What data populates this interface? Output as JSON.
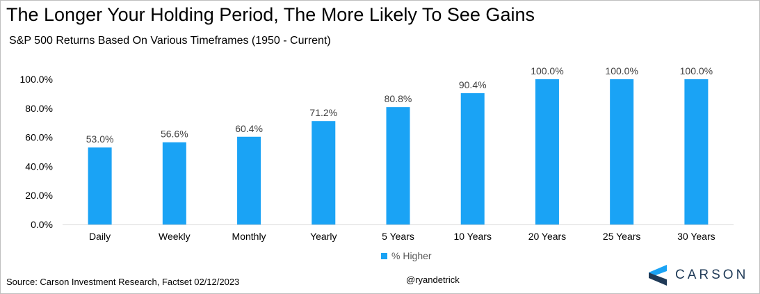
{
  "title": "The Longer Your Holding Period, The More Likely To See Gains",
  "subtitle": "S&P 500 Returns Based On Various Timeframes (1950 - Current)",
  "source": "Source: Carson Investment Research, Factset 02/12/2023",
  "handle": "@ryandetrick",
  "logo": {
    "text": "CARSON",
    "icon": "carson-chevron-icon"
  },
  "colors": {
    "bar": "#1aa3f5",
    "axis_text": "#000000",
    "label_text": "#404040",
    "logo_text": "#1f3a57"
  },
  "chart_data": {
    "type": "bar",
    "title": "The Longer Your Holding Period, The More Likely To See Gains",
    "subtitle": "S&P 500 Returns Based On Various Timeframes (1950 - Current)",
    "categories": [
      "Daily",
      "Weekly",
      "Monthly",
      "Yearly",
      "5 Years",
      "10 Years",
      "20 Years",
      "25 Years",
      "30 Years"
    ],
    "series": [
      {
        "name": "% Higher",
        "values": [
          53.0,
          56.6,
          60.4,
          71.2,
          80.8,
          90.4,
          100.0,
          100.0,
          100.0
        ]
      }
    ],
    "value_labels": [
      "53.0%",
      "56.6%",
      "60.4%",
      "71.2%",
      "80.8%",
      "90.4%",
      "100.0%",
      "100.0%",
      "100.0%"
    ],
    "yticks": [
      "0.0%",
      "20.0%",
      "40.0%",
      "60.0%",
      "80.0%",
      "100.0%"
    ],
    "ytick_values": [
      0,
      20,
      40,
      60,
      80,
      100
    ],
    "ylim": [
      0,
      100
    ],
    "grid": false,
    "legend": "bottom-center"
  }
}
